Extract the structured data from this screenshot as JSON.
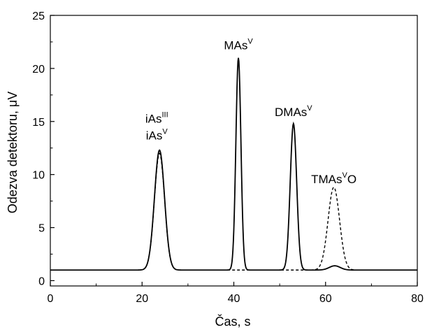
{
  "chart_data": {
    "type": "line",
    "title": "",
    "xlabel": "Čas, s",
    "ylabel": "Odezva detektoru, μV",
    "xlim": [
      0,
      80
    ],
    "ylim": [
      -0.5,
      25
    ],
    "xticks": [
      0,
      20,
      40,
      60,
      80
    ],
    "yticks": [
      0,
      5,
      10,
      15,
      20,
      25
    ],
    "xtick_labels": [
      "0",
      "20",
      "40",
      "60",
      "80"
    ],
    "ytick_labels": [
      "0",
      "5",
      "10",
      "15",
      "20",
      "25"
    ],
    "grid": false,
    "legend": "none",
    "baseline": 1.0,
    "series": [
      {
        "style": "solid",
        "color": "#000000",
        "peaks": [
          {
            "center": 23.8,
            "height": 12.3,
            "width": 1.1
          },
          {
            "center": 41.0,
            "height": 21.0,
            "width": 0.55
          },
          {
            "center": 53.0,
            "height": 14.8,
            "width": 0.7
          },
          {
            "center": 62.0,
            "height": 1.4,
            "width": 1.2
          }
        ]
      },
      {
        "style": "dashed",
        "color": "#000000",
        "peaks": [
          {
            "center": 23.8,
            "height": 12.0,
            "width": 1.1
          },
          {
            "center": 61.8,
            "height": 8.8,
            "width": 1.25
          }
        ]
      }
    ],
    "annotations": [
      {
        "base": "iAs",
        "sup": "III",
        "x": 23.2,
        "y": 14.9
      },
      {
        "base": "iAs",
        "sup": "V",
        "x": 23.2,
        "y": 13.3
      },
      {
        "base": "MAs",
        "sup": "V",
        "x": 41.0,
        "y": 21.8
      },
      {
        "base": "DMAs",
        "sup": "V",
        "x": 53.0,
        "y": 15.5
      },
      {
        "base": "TMAs",
        "sup": "V",
        "suffix": "O",
        "x": 61.8,
        "y": 9.2
      }
    ]
  }
}
